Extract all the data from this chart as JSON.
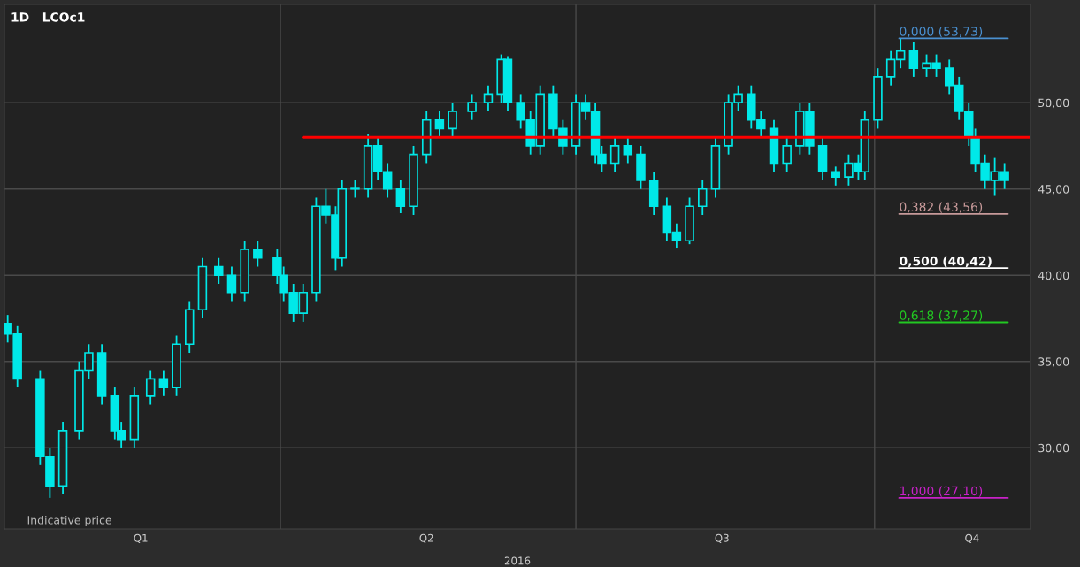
{
  "chart_data": {
    "type": "candlestick",
    "title": "1D   LCOc1",
    "xlabel": "2016",
    "annotations": [
      "Indicative price"
    ],
    "color": "#00e8e8",
    "x": [
      "2016-01-08",
      "2016-01-11",
      "2016-01-18",
      "2016-01-21",
      "2016-01-25",
      "2016-01-30",
      "2016-02-02",
      "2016-02-06",
      "2016-02-10",
      "2016-02-12",
      "2016-02-16",
      "2016-02-21",
      "2016-02-25",
      "2016-02-29",
      "2016-03-04",
      "2016-03-08",
      "2016-03-13",
      "2016-03-17",
      "2016-03-21",
      "2016-03-25",
      "2016-03-31",
      "2016-04-02",
      "2016-04-05",
      "2016-04-08",
      "2016-04-12",
      "2016-04-15",
      "2016-04-18",
      "2016-04-20",
      "2016-04-24",
      "2016-04-28",
      "2016-05-01",
      "2016-05-04",
      "2016-05-08",
      "2016-05-12",
      "2016-05-16",
      "2016-05-20",
      "2016-05-24",
      "2016-05-30",
      "2016-06-04",
      "2016-06-08",
      "2016-06-10",
      "2016-06-14",
      "2016-06-17",
      "2016-06-20",
      "2016-06-24",
      "2016-06-27",
      "2016-07-01",
      "2016-07-04",
      "2016-07-07",
      "2016-07-09",
      "2016-07-13",
      "2016-07-17",
      "2016-07-21",
      "2016-07-25",
      "2016-07-29",
      "2016-08-01",
      "2016-08-05",
      "2016-08-09",
      "2016-08-13",
      "2016-08-17",
      "2016-08-20",
      "2016-08-24",
      "2016-08-27",
      "2016-08-31",
      "2016-09-04",
      "2016-09-08",
      "2016-09-11",
      "2016-09-15",
      "2016-09-19",
      "2016-09-23",
      "2016-09-26",
      "2016-09-28",
      "2016-10-02",
      "2016-10-06",
      "2016-10-09",
      "2016-10-13",
      "2016-10-17",
      "2016-10-20",
      "2016-10-24",
      "2016-10-27",
      "2016-10-30",
      "2016-11-01",
      "2016-11-04",
      "2016-11-07",
      "2016-11-10"
    ],
    "ohlc": [
      [
        37.2,
        37.7,
        36.1,
        36.6
      ],
      [
        36.6,
        37.1,
        33.5,
        34
      ],
      [
        34,
        34.5,
        29,
        29.5
      ],
      [
        29.5,
        30,
        27.1,
        27.8
      ],
      [
        27.8,
        31.5,
        27.3,
        31
      ],
      [
        31,
        35,
        30.5,
        34.5
      ],
      [
        34.5,
        36,
        34,
        35.5
      ],
      [
        35.5,
        36,
        32.5,
        33
      ],
      [
        33,
        33.5,
        30.5,
        31
      ],
      [
        31,
        31.5,
        30,
        30.5
      ],
      [
        30.5,
        33.5,
        30,
        33
      ],
      [
        33,
        34.5,
        32.5,
        34
      ],
      [
        34,
        34.5,
        33,
        33.5
      ],
      [
        33.5,
        36.5,
        33,
        36
      ],
      [
        36,
        38.5,
        35.5,
        38
      ],
      [
        38,
        41,
        37.5,
        40.5
      ],
      [
        40.5,
        41,
        39.5,
        40
      ],
      [
        40,
        40.5,
        38.5,
        39
      ],
      [
        39,
        42,
        38.5,
        41.5
      ],
      [
        41.5,
        42,
        40.5,
        41
      ],
      [
        41,
        41.5,
        39.5,
        40
      ],
      [
        40,
        40.5,
        38.5,
        39
      ],
      [
        39,
        39.5,
        37.3,
        37.8
      ],
      [
        37.8,
        39.5,
        37.3,
        39
      ],
      [
        39,
        44.5,
        38.5,
        44
      ],
      [
        44,
        45,
        43,
        43.5
      ],
      [
        43.5,
        44,
        40.3,
        41
      ],
      [
        41,
        45.5,
        40.5,
        45
      ],
      [
        45,
        45.5,
        44.5,
        45
      ],
      [
        45,
        48.2,
        44.5,
        47.5
      ],
      [
        47.5,
        48,
        45.5,
        46
      ],
      [
        46,
        46.5,
        44.5,
        45
      ],
      [
        45,
        45.5,
        43.6,
        44
      ],
      [
        44,
        47.5,
        43.5,
        47
      ],
      [
        47,
        49.5,
        46.5,
        49
      ],
      [
        49,
        49.5,
        48,
        48.5
      ],
      [
        48.5,
        50,
        48,
        49.5
      ],
      [
        49.5,
        50.5,
        49,
        50
      ],
      [
        50,
        51,
        49.5,
        50.5
      ],
      [
        50.5,
        52.8,
        50,
        52.5
      ],
      [
        52.5,
        52.7,
        49.5,
        50
      ],
      [
        50,
        50.5,
        48.5,
        49
      ],
      [
        49,
        49.5,
        47,
        47.5
      ],
      [
        47.5,
        51,
        47,
        50.5
      ],
      [
        50.5,
        51,
        48,
        48.5
      ],
      [
        48.5,
        49,
        47,
        47.5
      ],
      [
        47.5,
        50.5,
        47,
        50
      ],
      [
        50,
        50.5,
        49,
        49.5
      ],
      [
        49.5,
        50,
        46.5,
        47
      ],
      [
        47,
        47.5,
        46,
        46.5
      ],
      [
        46.5,
        48,
        46,
        47.5
      ],
      [
        47.5,
        48,
        46.5,
        47
      ],
      [
        47,
        47.5,
        45,
        45.5
      ],
      [
        45.5,
        46,
        43.5,
        44
      ],
      [
        44,
        44.5,
        42,
        42.5
      ],
      [
        42.5,
        43,
        41.6,
        42
      ],
      [
        42,
        44.5,
        41.8,
        44
      ],
      [
        44,
        45.5,
        43.5,
        45
      ],
      [
        45,
        48,
        44.5,
        47.5
      ],
      [
        47.5,
        50.5,
        47,
        50
      ],
      [
        50,
        51,
        49.5,
        50.5
      ],
      [
        50.5,
        51,
        48.5,
        49
      ],
      [
        49,
        49.5,
        48,
        48.5
      ],
      [
        48.5,
        49,
        46,
        46.5
      ],
      [
        46.5,
        48,
        46,
        47.5
      ],
      [
        47.5,
        50,
        47,
        49.5
      ],
      [
        49.5,
        50,
        47,
        47.5
      ],
      [
        47.5,
        48,
        45.5,
        46
      ],
      [
        46,
        46.3,
        45.2,
        45.7
      ],
      [
        45.7,
        47,
        45.2,
        46.5
      ],
      [
        46.5,
        47,
        45.5,
        46
      ],
      [
        46,
        49.5,
        45.5,
        49
      ],
      [
        49,
        52,
        48.5,
        51.5
      ],
      [
        51.5,
        53,
        51,
        52.5
      ],
      [
        52.5,
        53.73,
        52,
        53
      ],
      [
        53,
        53.5,
        51.5,
        52
      ],
      [
        52,
        52.8,
        51.5,
        52.3
      ],
      [
        52.3,
        52.8,
        51.5,
        52
      ],
      [
        52,
        52.5,
        50.5,
        51
      ],
      [
        51,
        51.5,
        49,
        49.5
      ],
      [
        49.5,
        50,
        47.5,
        48
      ],
      [
        48,
        48.5,
        46,
        46.5
      ],
      [
        46.5,
        47,
        45,
        45.5
      ],
      [
        45.5,
        46.8,
        44.6,
        46
      ],
      [
        46,
        46.5,
        45,
        45.5
      ]
    ],
    "series": [
      {
        "type": "line",
        "x": [
          "2016-04-08",
          "2016-11-18"
        ],
        "values": [
          48,
          48
        ],
        "color": "#ff0000"
      }
    ],
    "ref_lines": [
      {
        "axis": "y",
        "value": 53.73,
        "label": "0,000 (53,73)",
        "color": "#4a90d0"
      },
      {
        "axis": "y",
        "value": 43.56,
        "label": "0,382 (43,56)",
        "color": "#c89a9a"
      },
      {
        "axis": "y",
        "value": 40.42,
        "label": "0,500 (40,42)",
        "color": "#ffffff"
      },
      {
        "axis": "y",
        "value": 37.27,
        "label": "0,618 (37,27)",
        "color": "#22c822"
      },
      {
        "axis": "y",
        "value": 27.1,
        "label": "1,000 (27,10)",
        "color": "#c822c8"
      }
    ],
    "xlim": [
      "2016-01-07",
      "2016-11-18"
    ],
    "xticks": [
      {
        "value": "2016-04-01",
        "label": null
      },
      {
        "value": "2016-07-01",
        "label": null
      },
      {
        "value": "2016-10-01",
        "label": null
      },
      {
        "value": "2016-02-18",
        "label": "Q1"
      },
      {
        "value": "2016-05-16",
        "label": "Q2"
      },
      {
        "value": "2016-08-15",
        "label": "Q3"
      },
      {
        "value": "2016-10-31",
        "label": "Q4"
      }
    ],
    "ylim": [
      25.3,
      55.7
    ],
    "yticks": [
      {
        "value": 30,
        "label": "30,00"
      },
      {
        "value": 35,
        "label": "35,00"
      },
      {
        "value": 40,
        "label": "40,00"
      },
      {
        "value": 45,
        "label": "45,00"
      },
      {
        "value": 50,
        "label": "50,00"
      }
    ],
    "grid": true
  }
}
